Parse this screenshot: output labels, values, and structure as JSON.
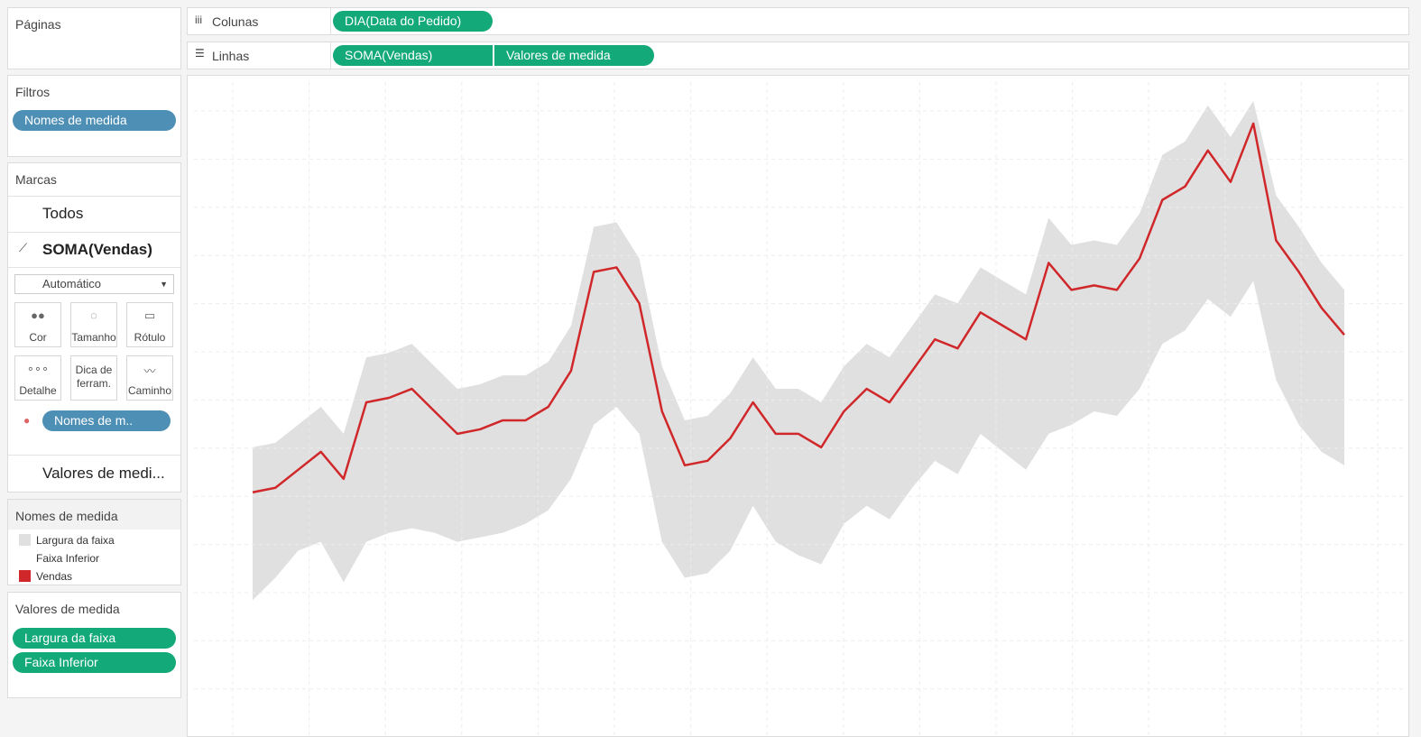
{
  "ui": {
    "pages_label": "Páginas",
    "columns_label": "Colunas",
    "columns_pill": "DIA(Data do Pedido)",
    "rows_label": "Linhas",
    "rows_pills": [
      "SOMA(Vendas)",
      "Valores de medida"
    ],
    "filters_label": "Filtros",
    "filter_pill": "Nomes de medida",
    "marks_label": "Marcas",
    "marks_all": "Todos",
    "marks_sum": "SOMA(Vendas)",
    "mark_type": "Automático",
    "mark_buttons": [
      "Cor",
      "Tamanho",
      "Rótulo",
      "Detalhe",
      "Dica de ferram.",
      "Caminho"
    ],
    "marks_pill": "Nomes de m..",
    "marks_values": "Valores de medi...",
    "legend_title": "Nomes de medida",
    "values_label": "Valores de medida",
    "values_pills": [
      "Largura da faixa",
      "Faixa Inferior"
    ]
  },
  "chart_data": {
    "type": "line",
    "categories": [
      null,
      null,
      null,
      null,
      null,
      null,
      null,
      null,
      null,
      null,
      null,
      null,
      null,
      null,
      null,
      null,
      null,
      null,
      null,
      null,
      null,
      null,
      null,
      null,
      null,
      null,
      null,
      null,
      null,
      null,
      null,
      null,
      null,
      null,
      null,
      null,
      null,
      null,
      null,
      null,
      null,
      null,
      null,
      null,
      null,
      null,
      null,
      null,
      null
    ],
    "ylim": [
      0,
      730
    ],
    "grid": true,
    "series": [
      {
        "name": "Largura da faixa",
        "color": "#e0e0e0",
        "stack": "band",
        "values": [
          170,
          150,
          140,
          150,
          165,
          205,
          200,
          205,
          185,
          170,
          170,
          175,
          165,
          165,
          170,
          220,
          205,
          195,
          195,
          175,
          175,
          175,
          165,
          170,
          185,
          180,
          175,
          180,
          180,
          180,
          185,
          190,
          185,
          190,
          195,
          240,
          200,
          190,
          190,
          195,
          210,
          210,
          215,
          200,
          200,
          205,
          220,
          210,
          195
        ]
      },
      {
        "name": "Faixa Inferior",
        "color": "#ffffff",
        "stack": "band",
        "values": [
          147,
          172,
          202,
          212,
          167,
          212,
          222,
          227,
          222,
          212,
          217,
          222,
          232,
          247,
          282,
          342,
          362,
          332,
          212,
          172,
          177,
          202,
          252,
          212,
          197,
          187,
          232,
          252,
          237,
          272,
          302,
          287,
          332,
          312,
          292,
          332,
          342,
          357,
          352,
          382,
          432,
          447,
          482,
          462,
          502,
          392,
          342,
          312,
          297
        ]
      },
      {
        "name": "Vendas",
        "color": "#d0282a",
        "values": [
          267,
          272,
          292,
          312,
          282,
          367,
          372,
          382,
          357,
          332,
          337,
          347,
          347,
          362,
          402,
          512,
          517,
          477,
          357,
          297,
          302,
          327,
          367,
          332,
          332,
          317,
          357,
          382,
          367,
          402,
          437,
          427,
          467,
          452,
          437,
          522,
          492,
          497,
          492,
          527,
          592,
          607,
          647,
          612,
          677,
          547,
          512,
          472,
          442
        ]
      }
    ]
  }
}
